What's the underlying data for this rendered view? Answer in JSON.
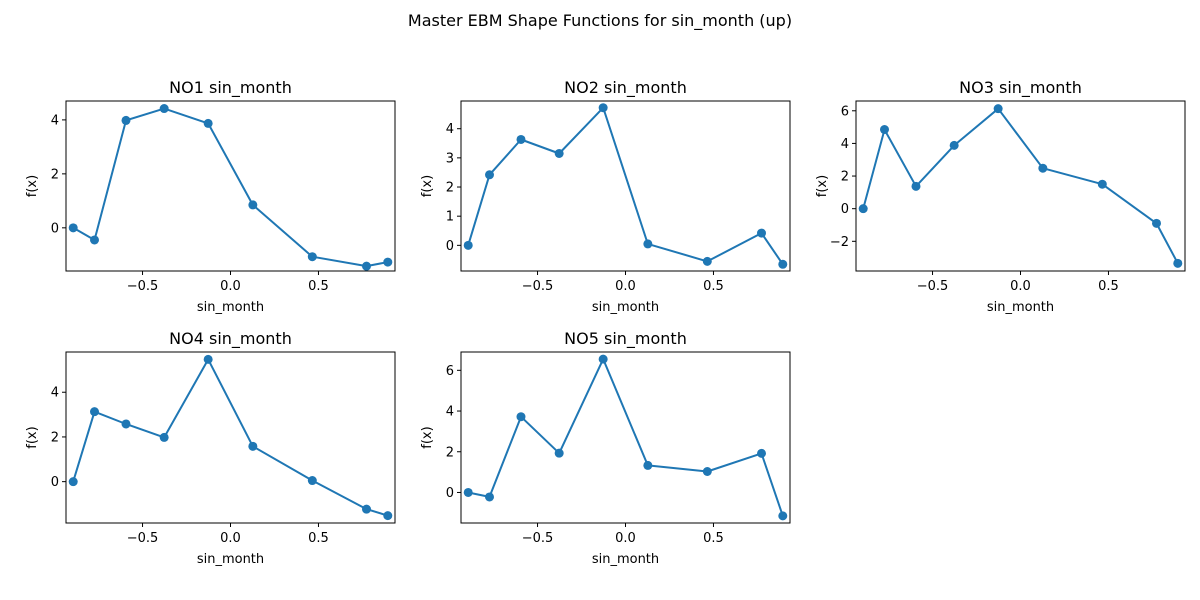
{
  "figure_title": "Master EBM Shape Functions for sin_month (up)",
  "colors": {
    "series": "#1f77b4"
  },
  "chart_data": [
    {
      "type": "line",
      "title": "NO1 sin_month",
      "xlabel": "sin_month",
      "ylabel": "f(x)",
      "xlim": [
        -0.935,
        0.935
      ],
      "ylim": [
        -1.6,
        4.7
      ],
      "xticks": [
        -0.5,
        0.0,
        0.5
      ],
      "xtick_labels": [
        "−0.5",
        "0.0",
        "0.5"
      ],
      "yticks": [
        0,
        2,
        4
      ],
      "ytick_labels": [
        "0",
        "2",
        "4"
      ],
      "marker": "circle",
      "x": [
        -0.894,
        -0.773,
        -0.594,
        -0.377,
        -0.127,
        0.127,
        0.465,
        0.773,
        0.894
      ],
      "y": [
        0.0,
        -0.45,
        3.98,
        4.42,
        3.87,
        0.85,
        -1.07,
        -1.42,
        -1.27
      ]
    },
    {
      "type": "line",
      "title": "NO2 sin_month",
      "xlabel": "sin_month",
      "ylabel": "f(x)",
      "xlim": [
        -0.935,
        0.935
      ],
      "ylim": [
        -0.88,
        4.95
      ],
      "xticks": [
        -0.5,
        0.0,
        0.5
      ],
      "xtick_labels": [
        "−0.5",
        "0.0",
        "0.5"
      ],
      "yticks": [
        0,
        1,
        2,
        3,
        4
      ],
      "ytick_labels": [
        "0",
        "1",
        "2",
        "3",
        "4"
      ],
      "marker": "circle",
      "x": [
        -0.894,
        -0.773,
        -0.594,
        -0.377,
        -0.127,
        0.127,
        0.465,
        0.773,
        0.894
      ],
      "y": [
        0.0,
        2.42,
        3.63,
        3.15,
        4.72,
        0.05,
        -0.55,
        0.42,
        -0.65
      ]
    },
    {
      "type": "line",
      "title": "NO3 sin_month",
      "xlabel": "sin_month",
      "ylabel": "f(x)",
      "xlim": [
        -0.935,
        0.935
      ],
      "ylim": [
        -3.82,
        6.6
      ],
      "xticks": [
        -0.5,
        0.0,
        0.5
      ],
      "xtick_labels": [
        "−0.5",
        "0.0",
        "0.5"
      ],
      "yticks": [
        -2,
        0,
        2,
        4,
        6
      ],
      "ytick_labels": [
        "−2",
        "0",
        "2",
        "4",
        "6"
      ],
      "marker": "circle",
      "x": [
        -0.894,
        -0.773,
        -0.594,
        -0.377,
        -0.127,
        0.127,
        0.465,
        0.773,
        0.894
      ],
      "y": [
        0.0,
        4.85,
        1.37,
        3.88,
        6.13,
        2.48,
        1.5,
        -0.9,
        -3.35
      ]
    },
    {
      "type": "line",
      "title": "NO4 sin_month",
      "xlabel": "sin_month",
      "ylabel": "f(x)",
      "xlim": [
        -0.935,
        0.935
      ],
      "ylim": [
        -1.85,
        5.8
      ],
      "xticks": [
        -0.5,
        0.0,
        0.5
      ],
      "xtick_labels": [
        "−0.5",
        "0.0",
        "0.5"
      ],
      "yticks": [
        0,
        2,
        4
      ],
      "ytick_labels": [
        "0",
        "2",
        "4"
      ],
      "marker": "circle",
      "x": [
        -0.894,
        -0.773,
        -0.594,
        -0.377,
        -0.127,
        0.127,
        0.465,
        0.773,
        0.894
      ],
      "y": [
        0.0,
        3.13,
        2.58,
        1.98,
        5.47,
        1.58,
        0.05,
        -1.23,
        -1.52
      ]
    },
    {
      "type": "line",
      "title": "NO5 sin_month",
      "xlabel": "sin_month",
      "ylabel": "f(x)",
      "xlim": [
        -0.935,
        0.935
      ],
      "ylim": [
        -1.5,
        6.9
      ],
      "xticks": [
        -0.5,
        0.0,
        0.5
      ],
      "xtick_labels": [
        "−0.5",
        "0.0",
        "0.5"
      ],
      "yticks": [
        0,
        2,
        4,
        6
      ],
      "ytick_labels": [
        "0",
        "2",
        "4",
        "6"
      ],
      "marker": "circle",
      "x": [
        -0.894,
        -0.773,
        -0.594,
        -0.377,
        -0.127,
        0.127,
        0.465,
        0.773,
        0.894
      ],
      "y": [
        0.0,
        -0.22,
        3.72,
        1.93,
        6.55,
        1.33,
        1.03,
        1.92,
        -1.15
      ]
    }
  ]
}
